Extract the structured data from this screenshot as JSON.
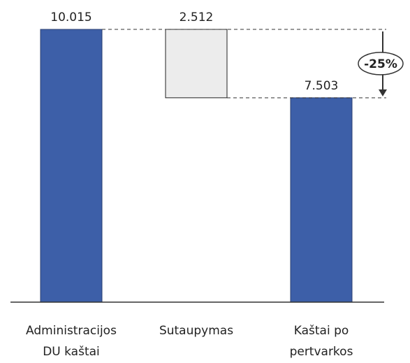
{
  "chart_data": {
    "type": "waterfall",
    "categories": [
      "Administracijos DU kaštai",
      "Sutaupymas",
      "Kaštai po pertvarkos"
    ],
    "values": [
      10.015,
      2.512,
      7.503
    ],
    "kinds": [
      "total",
      "decrease",
      "total"
    ],
    "colors": [
      "#3d5fa8",
      "#ececec",
      "#3d5fa8"
    ],
    "annotation": "-25%"
  }
}
